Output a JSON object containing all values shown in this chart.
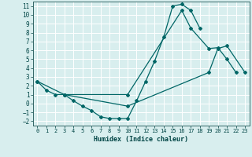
{
  "xlabel": "Humidex (Indice chaleur)",
  "background_color": "#d8eeee",
  "grid_color": "#ffffff",
  "line_color": "#006666",
  "xlim": [
    -0.5,
    23.5
  ],
  "ylim": [
    -2.5,
    11.5
  ],
  "xticks": [
    0,
    1,
    2,
    3,
    4,
    5,
    6,
    7,
    8,
    9,
    10,
    11,
    12,
    13,
    14,
    15,
    16,
    17,
    18,
    19,
    20,
    21,
    22,
    23
  ],
  "yticks": [
    -2,
    -1,
    0,
    1,
    2,
    3,
    4,
    5,
    6,
    7,
    8,
    9,
    10,
    11
  ],
  "series": [
    {
      "x": [
        0,
        1,
        2,
        3,
        4,
        5,
        6,
        7,
        8,
        9,
        10,
        11,
        12,
        13,
        14,
        15,
        16,
        17,
        18
      ],
      "y": [
        2.5,
        1.5,
        1.0,
        1.0,
        0.3,
        -0.3,
        -0.8,
        -1.5,
        -1.7,
        -1.7,
        -1.7,
        0.3,
        2.5,
        4.8,
        7.5,
        11.0,
        11.2,
        10.5,
        8.5
      ]
    },
    {
      "x": [
        0,
        3,
        10,
        16,
        17,
        19,
        20,
        21,
        22
      ],
      "y": [
        2.5,
        1.0,
        1.0,
        10.5,
        8.5,
        6.2,
        6.3,
        5.0,
        3.5
      ]
    },
    {
      "x": [
        3,
        10,
        19,
        20,
        21,
        23
      ],
      "y": [
        1.0,
        -0.3,
        3.5,
        6.2,
        6.5,
        3.5
      ]
    }
  ]
}
